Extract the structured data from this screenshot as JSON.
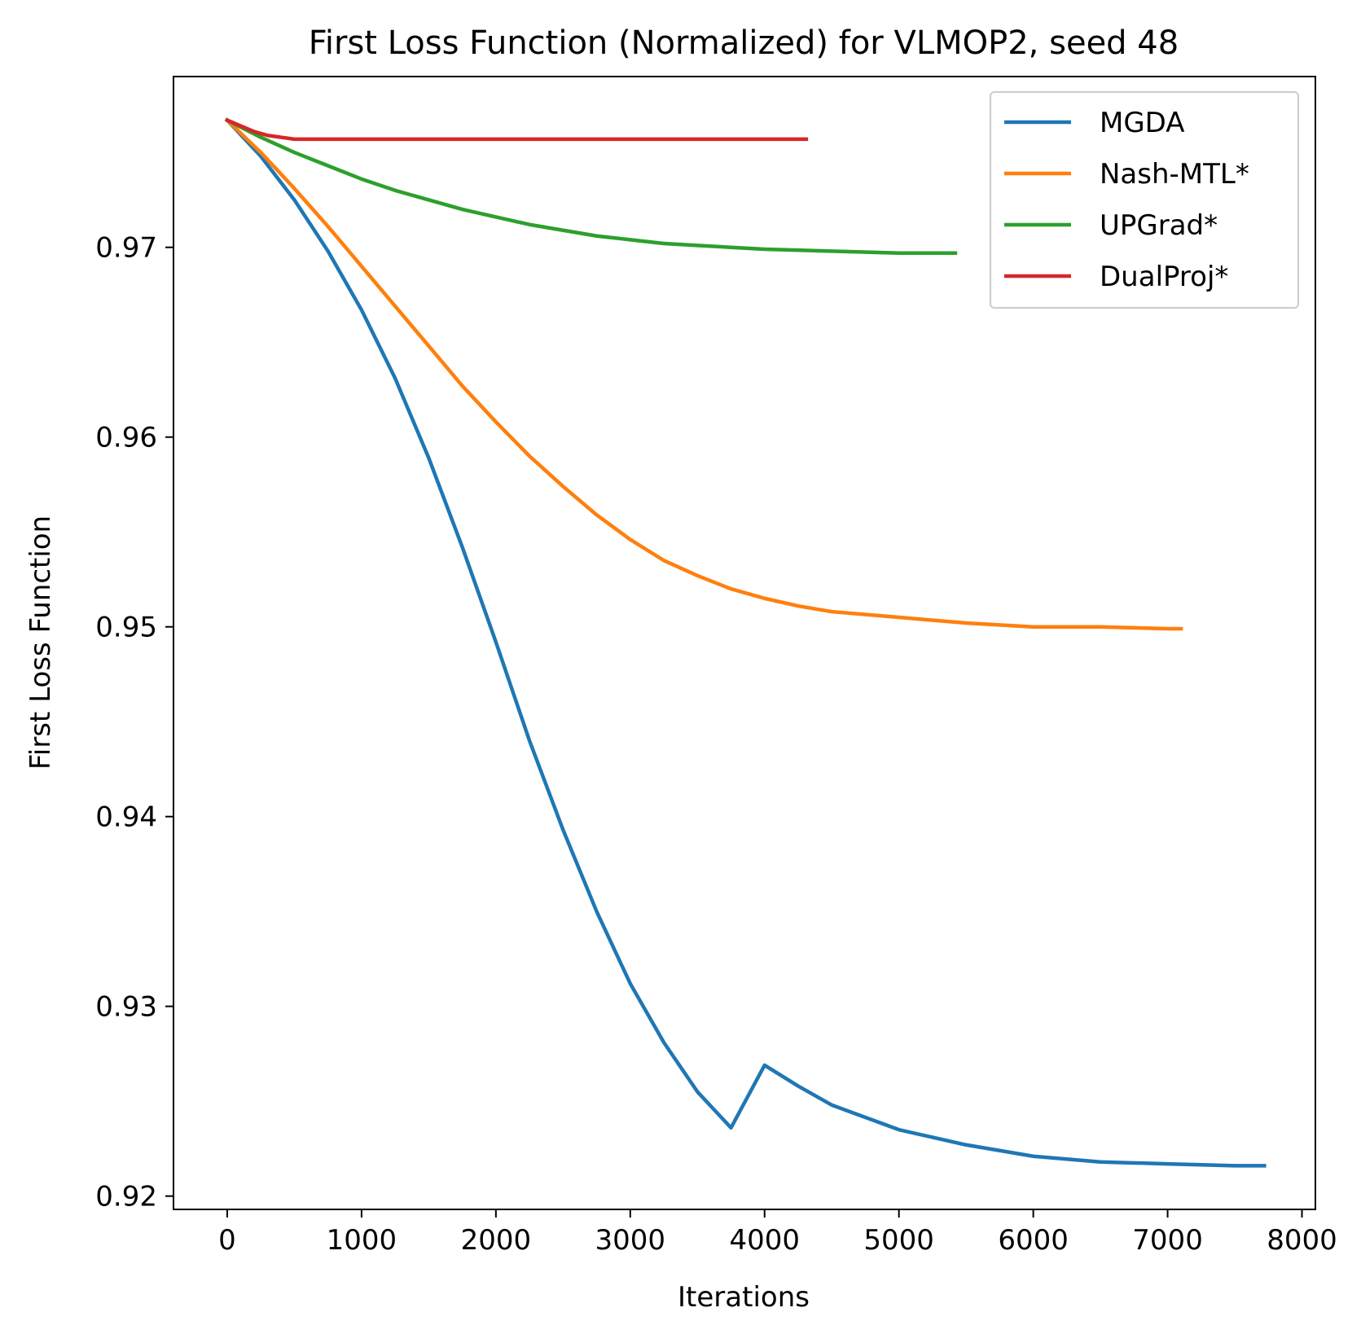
{
  "chart_data": {
    "type": "line",
    "title": "First Loss Function (Normalized) for VLMOP2, seed 48",
    "xlabel": "Iterations",
    "ylabel": "First Loss Function",
    "xlim": [
      -400,
      8100
    ],
    "ylim": [
      0.9193,
      0.979
    ],
    "x_ticks": [
      0,
      1000,
      2000,
      3000,
      4000,
      5000,
      6000,
      7000,
      8000
    ],
    "x_tick_labels": [
      "0",
      "1000",
      "2000",
      "3000",
      "4000",
      "5000",
      "6000",
      "7000",
      "8000"
    ],
    "y_ticks": [
      0.92,
      0.93,
      0.94,
      0.95,
      0.96,
      0.97
    ],
    "y_tick_labels": [
      "0.92",
      "0.93",
      "0.94",
      "0.95",
      "0.96",
      "0.97"
    ],
    "grid": false,
    "legend_position": "top-right",
    "series": [
      {
        "name": "MGDA",
        "color": "#1f77b4",
        "x": [
          0,
          250,
          500,
          750,
          1000,
          1250,
          1500,
          1750,
          2000,
          2250,
          2500,
          2750,
          3000,
          3250,
          3500,
          3750,
          4000,
          4250,
          4500,
          5000,
          5500,
          6000,
          6500,
          7000,
          7500,
          7720
        ],
        "y": [
          0.9767,
          0.9748,
          0.9725,
          0.9698,
          0.9667,
          0.9631,
          0.9589,
          0.9542,
          0.9492,
          0.944,
          0.9393,
          0.935,
          0.9312,
          0.9281,
          0.9255,
          0.9236,
          0.9269,
          0.9258,
          0.9248,
          0.9235,
          0.9227,
          0.9221,
          0.9218,
          0.9217,
          0.9216,
          0.9216
        ]
      },
      {
        "name": "Nash-MTL*",
        "color": "#ff7f0e",
        "x": [
          0,
          250,
          500,
          750,
          1000,
          1250,
          1500,
          1750,
          2000,
          2250,
          2500,
          2750,
          3000,
          3250,
          3500,
          3750,
          4000,
          4250,
          4500,
          5000,
          5500,
          6000,
          6500,
          7000,
          7100
        ],
        "y": [
          0.9767,
          0.975,
          0.9731,
          0.9711,
          0.969,
          0.9669,
          0.9648,
          0.9627,
          0.9608,
          0.959,
          0.9574,
          0.9559,
          0.9546,
          0.9535,
          0.9527,
          0.952,
          0.9515,
          0.9511,
          0.9508,
          0.9505,
          0.9502,
          0.95,
          0.95,
          0.9499,
          0.9499
        ]
      },
      {
        "name": "UPGrad*",
        "color": "#2ca02c",
        "x": [
          0,
          250,
          500,
          750,
          1000,
          1250,
          1500,
          1750,
          2000,
          2250,
          2500,
          2750,
          3000,
          3250,
          3500,
          3750,
          4000,
          4500,
          5000,
          5420
        ],
        "y": [
          0.9767,
          0.9758,
          0.975,
          0.9743,
          0.9736,
          0.973,
          0.9725,
          0.972,
          0.9716,
          0.9712,
          0.9709,
          0.9706,
          0.9704,
          0.9702,
          0.9701,
          0.97,
          0.9699,
          0.9698,
          0.9697,
          0.9697
        ]
      },
      {
        "name": "DualProj*",
        "color": "#d62728",
        "x": [
          0,
          100,
          200,
          300,
          400,
          500,
          600,
          800,
          1000,
          1500,
          2000,
          2500,
          3000,
          3500,
          4000,
          4310
        ],
        "y": [
          0.9767,
          0.9764,
          0.9761,
          0.9759,
          0.9758,
          0.9757,
          0.9757,
          0.9757,
          0.9757,
          0.9757,
          0.9757,
          0.9757,
          0.9757,
          0.9757,
          0.9757,
          0.9757
        ]
      }
    ]
  }
}
